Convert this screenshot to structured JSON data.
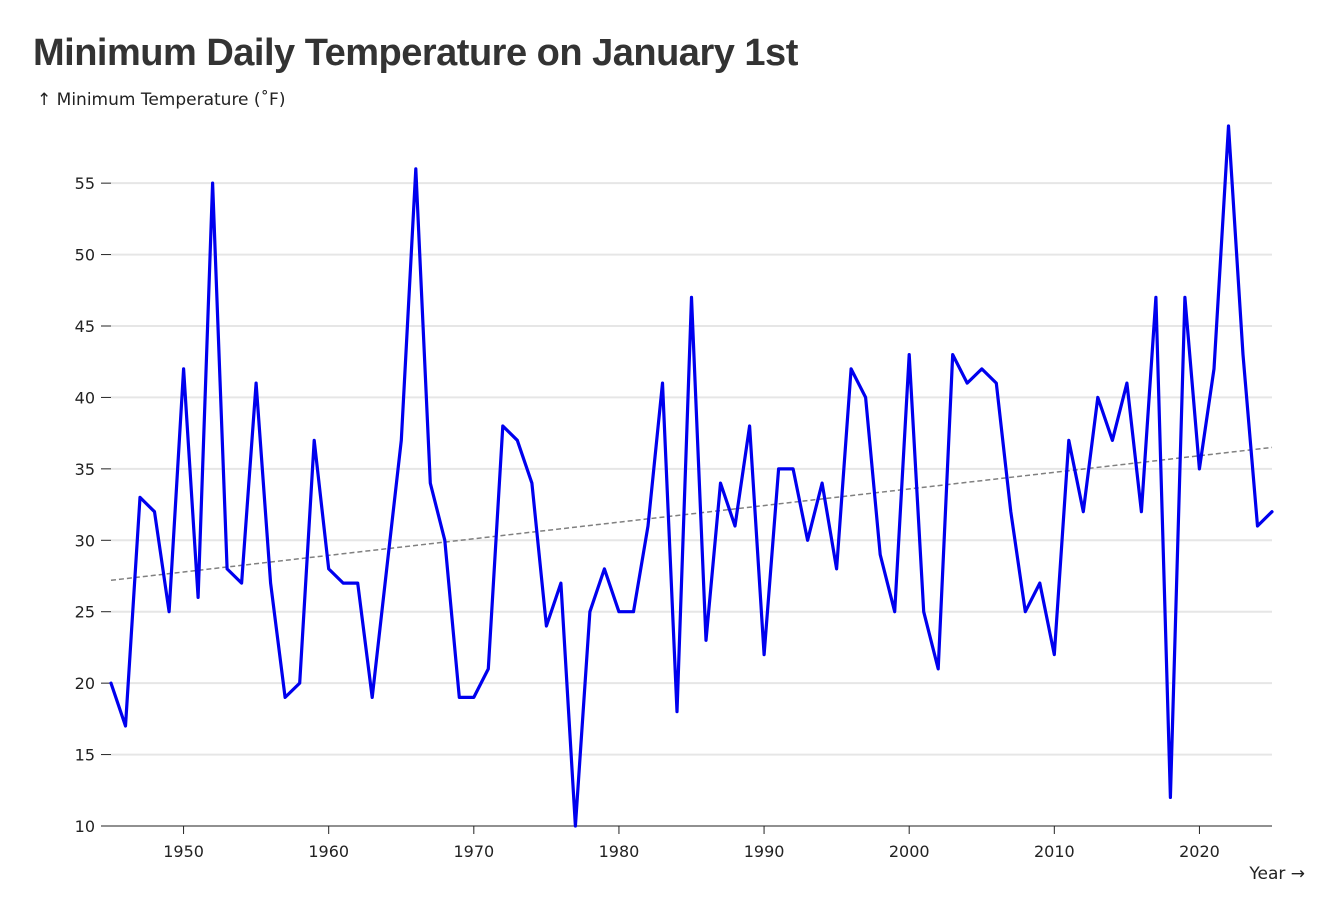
{
  "chart_data": {
    "type": "line",
    "title": "Minimum Daily Temperature on January 1st",
    "ylabel": "↑ Minimum Temperature (˚F)",
    "xlabel": "Year →",
    "xlim": [
      1945,
      2025
    ],
    "ylim": [
      10,
      59
    ],
    "x_ticks": [
      1950,
      1960,
      1970,
      1980,
      1990,
      2000,
      2010,
      2020
    ],
    "y_ticks": [
      10,
      15,
      20,
      25,
      30,
      35,
      40,
      45,
      50,
      55
    ],
    "grid": "horizontal",
    "series": [
      {
        "color": "#0000ee",
        "x": [
          1945,
          1946,
          1947,
          1948,
          1949,
          1950,
          1951,
          1952,
          1953,
          1954,
          1955,
          1956,
          1957,
          1958,
          1959,
          1960,
          1961,
          1962,
          1963,
          1964,
          1965,
          1966,
          1967,
          1968,
          1969,
          1970,
          1971,
          1972,
          1973,
          1974,
          1975,
          1976,
          1977,
          1978,
          1979,
          1980,
          1981,
          1982,
          1983,
          1984,
          1985,
          1986,
          1987,
          1988,
          1989,
          1990,
          1991,
          1992,
          1993,
          1994,
          1995,
          1996,
          1997,
          1998,
          1999,
          2000,
          2001,
          2002,
          2003,
          2004,
          2005,
          2006,
          2007,
          2008,
          2009,
          2010,
          2011,
          2012,
          2013,
          2014,
          2015,
          2016,
          2017,
          2018,
          2019,
          2020,
          2021,
          2022,
          2023,
          2024,
          2025
        ],
        "values": [
          20,
          17,
          33,
          32,
          25,
          42,
          26,
          55,
          28,
          27,
          41,
          27,
          19,
          20,
          37,
          28,
          27,
          27,
          19,
          28,
          37,
          56,
          34,
          30,
          19,
          19,
          21,
          38,
          37,
          34,
          24,
          27,
          10,
          25,
          28,
          25,
          25,
          31,
          41,
          18,
          47,
          23,
          34,
          31,
          38,
          22,
          35,
          35,
          30,
          34,
          28,
          42,
          40,
          29,
          25,
          43,
          25,
          21,
          43,
          41,
          42,
          41,
          32,
          25,
          27,
          22,
          37,
          32,
          40,
          37,
          41,
          32,
          47,
          12,
          47,
          35,
          42,
          59,
          43,
          31,
          32
        ]
      }
    ],
    "trendline": {
      "color": "#808080",
      "style": "dashed",
      "x": [
        1945,
        2025
      ],
      "y": [
        27.2,
        36.5
      ]
    }
  }
}
